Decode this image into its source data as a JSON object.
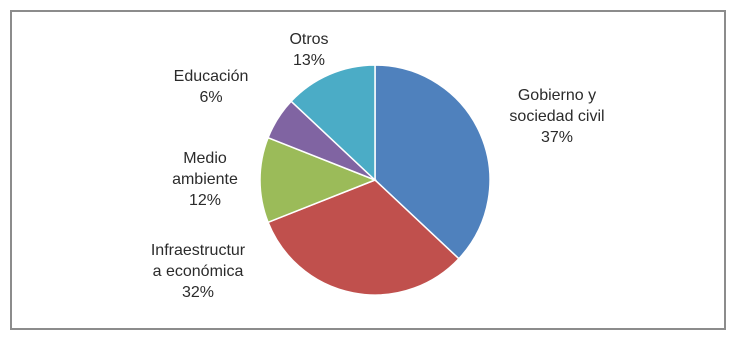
{
  "chart_data": {
    "type": "pie",
    "slices": [
      {
        "label_lines": [
          "Gobierno y",
          "sociedad civil"
        ],
        "percent_label": "37%",
        "value": 37,
        "color": "#4f81bd"
      },
      {
        "label_lines": [
          "Infraestructur",
          "a económica"
        ],
        "percent_label": "32%",
        "value": 32,
        "color": "#c0504d"
      },
      {
        "label_lines": [
          "Medio",
          "ambiente"
        ],
        "percent_label": "12%",
        "value": 12,
        "color": "#9bbb59"
      },
      {
        "label_lines": [
          "Educación"
        ],
        "percent_label": "6%",
        "value": 6,
        "color": "#8064a2"
      },
      {
        "label_lines": [
          "Otros"
        ],
        "percent_label": "13%",
        "value": 13,
        "color": "#4bacc6"
      }
    ],
    "legend": "none",
    "title": ""
  }
}
